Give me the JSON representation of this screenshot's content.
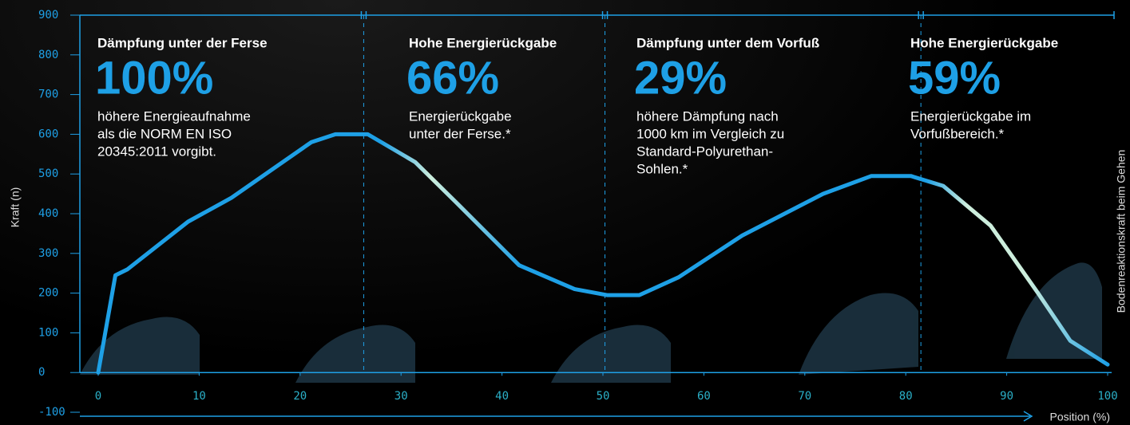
{
  "chart_data": {
    "type": "line",
    "y_label": "Kraft (n)",
    "x_label": "Position (%)",
    "side_label": "Bodenreaktionskraft beim Gehen",
    "xlim": [
      0,
      100
    ],
    "xticks": [
      0,
      10,
      20,
      30,
      40,
      50,
      60,
      70,
      80,
      90,
      100
    ],
    "ylim": [
      -100,
      900
    ],
    "yticks": [
      -100,
      0,
      100,
      200,
      300,
      400,
      500,
      600,
      700,
      800,
      900
    ],
    "color": "#1ea0e6",
    "highlight_color": "#cdeedd",
    "dividers": [
      26.3,
      50.2,
      81.5
    ],
    "x": [
      0,
      1.7,
      2.9,
      8.9,
      13.2,
      21.1,
      23.5,
      26.7,
      31.4,
      35.4,
      41.7,
      47.2,
      50.4,
      53.6,
      57.5,
      63.8,
      71.8,
      76.6,
      80.5,
      83.7,
      88.4,
      93.1,
      96.3,
      100
    ],
    "series": [
      {
        "name": "Kraft",
        "color": "#1ea0e6",
        "values": [
          0,
          245,
          260,
          380,
          440,
          580,
          600,
          600,
          530,
          430,
          270,
          210,
          195,
          195,
          240,
          345,
          450,
          495,
          495,
          470,
          370,
          200,
          80,
          20
        ]
      }
    ],
    "sections": [
      {
        "heading": "Dämpfung unter der Ferse",
        "figure": "100%",
        "lines": [
          "höhere Energieaufnahme",
          "als die NORM EN ISO",
          "20345:2011 vorgibt."
        ]
      },
      {
        "heading": "Hohe Energierückgabe",
        "figure": "66%",
        "lines": [
          "Energierückgabe",
          "unter der Ferse.*"
        ]
      },
      {
        "heading": "Dämpfung unter dem Vorfuß",
        "figure": "29%",
        "lines": [
          "höhere Dämpfung nach",
          "1000 km im Vergleich zu",
          "Standard-Polyurethan-",
          "Sohlen.*"
        ]
      },
      {
        "heading": "Hohe Energierückgabe",
        "figure": "59%",
        "lines": [
          "Energierückgabe im",
          "Vorfußbereich.*"
        ]
      }
    ]
  }
}
